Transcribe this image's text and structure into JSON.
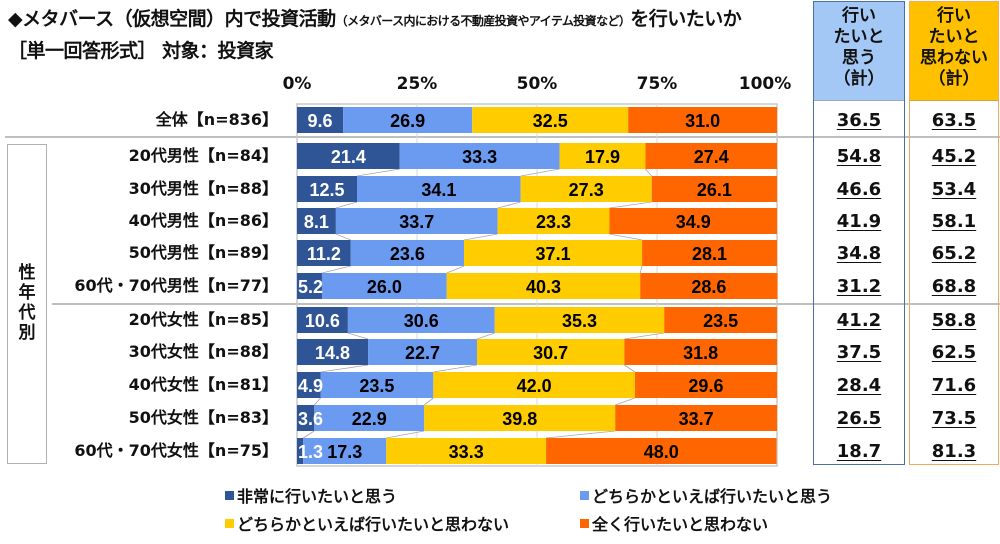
{
  "header": {
    "title_main_prefix": "◆メタバース（仮想空間）内で投資活動",
    "title_note": "（メタバース内における不動産投資やアイテム投資など）",
    "title_main_suffix": "を行いたいか",
    "subtitle": "［単一回答形式］ 対象：投資家"
  },
  "group_label_chars": [
    "性",
    "年",
    "代",
    "別"
  ],
  "total_columns": [
    {
      "header_lines": [
        "行い",
        "たいと",
        "思う",
        "（計）"
      ],
      "color": "#a4c8f5"
    },
    {
      "header_lines": [
        "行い",
        "たいと",
        "思わない",
        "（計）"
      ],
      "color": "#ffc000"
    }
  ],
  "chart_data": {
    "type": "bar",
    "orientation": "horizontal-stacked-100",
    "title": "メタバース（仮想空間）内で投資活動を行いたいか",
    "xlabel": "",
    "ylabel": "",
    "xlim": [
      0,
      100
    ],
    "x_ticks": [
      "0%",
      "25%",
      "50%",
      "75%",
      "100%"
    ],
    "grid": true,
    "legend_position": "bottom",
    "categories": [
      "全体【n=836】",
      "20代男性【n=84】",
      "30代男性【n=88】",
      "40代男性【n=86】",
      "50代男性【n=89】",
      "60代・70代男性【n=77】",
      "20代女性【n=85】",
      "30代女性【n=88】",
      "40代女性【n=81】",
      "50代女性【n=83】",
      "60代・70代女性【n=75】"
    ],
    "series": [
      {
        "name": "非常に行いたいと思う",
        "color": "#2f5597",
        "label_color": "#ffffff",
        "values": [
          9.6,
          21.4,
          12.5,
          8.1,
          11.2,
          5.2,
          10.6,
          14.8,
          4.9,
          3.6,
          1.3
        ]
      },
      {
        "name": "どちらかといえば行いたいと思う",
        "color": "#6a9bf0",
        "label_color": "#000000",
        "values": [
          26.9,
          33.3,
          34.1,
          33.7,
          23.6,
          26.0,
          30.6,
          22.7,
          23.5,
          22.9,
          17.3
        ]
      },
      {
        "name": "どちらかといえば行いたいと思わない",
        "color": "#ffcc00",
        "label_color": "#000000",
        "values": [
          32.5,
          17.9,
          27.3,
          23.3,
          37.1,
          40.3,
          35.3,
          30.7,
          42.0,
          39.8,
          33.3
        ]
      },
      {
        "name": "全く行いたいと思わない",
        "color": "#ff6600",
        "label_color": "#000000",
        "values": [
          31.0,
          27.4,
          26.1,
          34.9,
          28.1,
          28.6,
          23.5,
          31.8,
          29.6,
          33.7,
          48.0
        ]
      }
    ],
    "totals": {
      "want": [
        "36.5",
        "54.8",
        "46.6",
        "41.9",
        "34.8",
        "31.2",
        "41.2",
        "37.5",
        "28.4",
        "26.5",
        "18.7"
      ],
      "not_want": [
        "63.5",
        "45.2",
        "53.4",
        "58.1",
        "65.2",
        "68.8",
        "58.8",
        "62.5",
        "71.6",
        "73.5",
        "81.3"
      ]
    }
  }
}
